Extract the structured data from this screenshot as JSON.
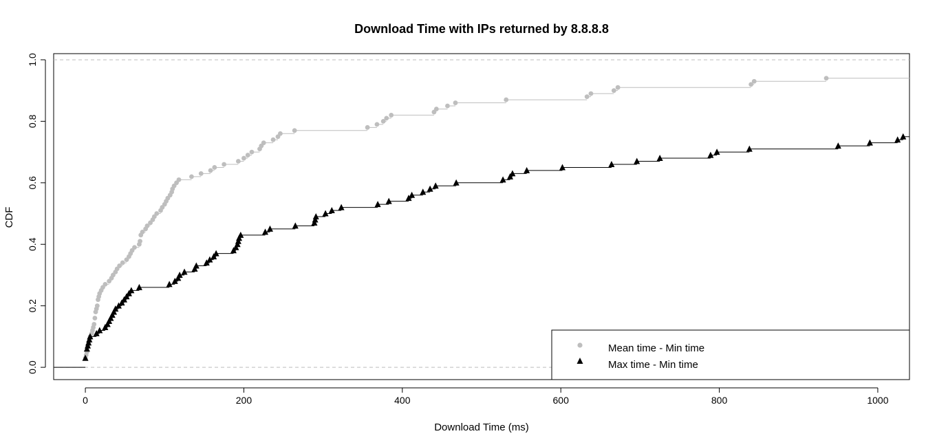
{
  "chart_data": {
    "type": "line",
    "subtype": "empirical CDF (step)",
    "title": "Download Time with IPs returned by 8.8.8.8",
    "xlabel": "Download Time (ms)",
    "ylabel": "CDF",
    "xlim": [
      -40,
      1040
    ],
    "ylim": [
      -0.04,
      1.02
    ],
    "x_ticks": [
      0,
      200,
      400,
      600,
      800,
      1000
    ],
    "x_tick_labels": [
      "0",
      "200",
      "400",
      "600",
      "800",
      "1000"
    ],
    "y_ticks": [
      0.0,
      0.2,
      0.4,
      0.6,
      0.8,
      1.0
    ],
    "y_tick_labels": [
      "0.0",
      "0.2",
      "0.4",
      "0.6",
      "0.8",
      "1.0"
    ],
    "reference_lines": [
      0.0,
      1.0
    ],
    "grid": false,
    "legend_position": "bottom-right",
    "series": [
      {
        "name": "Mean time - Min time",
        "color": "#bebebe",
        "marker": "circle",
        "points": [
          [
            0,
            0.03
          ],
          [
            1,
            0.04
          ],
          [
            2,
            0.05
          ],
          [
            3,
            0.07
          ],
          [
            4,
            0.08
          ],
          [
            5,
            0.09
          ],
          [
            6,
            0.1
          ],
          [
            8,
            0.11
          ],
          [
            9,
            0.12
          ],
          [
            10,
            0.13
          ],
          [
            11,
            0.14
          ],
          [
            12,
            0.16
          ],
          [
            13,
            0.18
          ],
          [
            14,
            0.19
          ],
          [
            15,
            0.2
          ],
          [
            16,
            0.22
          ],
          [
            17,
            0.23
          ],
          [
            18,
            0.24
          ],
          [
            20,
            0.25
          ],
          [
            22,
            0.26
          ],
          [
            25,
            0.27
          ],
          [
            30,
            0.28
          ],
          [
            33,
            0.29
          ],
          [
            35,
            0.3
          ],
          [
            38,
            0.31
          ],
          [
            40,
            0.32
          ],
          [
            43,
            0.33
          ],
          [
            47,
            0.34
          ],
          [
            52,
            0.35
          ],
          [
            55,
            0.36
          ],
          [
            57,
            0.37
          ],
          [
            59,
            0.38
          ],
          [
            62,
            0.39
          ],
          [
            68,
            0.4
          ],
          [
            69,
            0.41
          ],
          [
            70,
            0.43
          ],
          [
            72,
            0.44
          ],
          [
            76,
            0.45
          ],
          [
            78,
            0.46
          ],
          [
            82,
            0.47
          ],
          [
            85,
            0.48
          ],
          [
            87,
            0.49
          ],
          [
            90,
            0.5
          ],
          [
            95,
            0.51
          ],
          [
            97,
            0.52
          ],
          [
            100,
            0.53
          ],
          [
            102,
            0.54
          ],
          [
            104,
            0.55
          ],
          [
            107,
            0.56
          ],
          [
            109,
            0.57
          ],
          [
            110,
            0.58
          ],
          [
            112,
            0.59
          ],
          [
            115,
            0.6
          ],
          [
            118,
            0.61
          ],
          [
            134,
            0.62
          ],
          [
            146,
            0.63
          ],
          [
            158,
            0.64
          ],
          [
            163,
            0.65
          ],
          [
            175,
            0.66
          ],
          [
            193,
            0.67
          ],
          [
            200,
            0.68
          ],
          [
            205,
            0.69
          ],
          [
            210,
            0.7
          ],
          [
            220,
            0.71
          ],
          [
            222,
            0.72
          ],
          [
            225,
            0.73
          ],
          [
            237,
            0.74
          ],
          [
            243,
            0.75
          ],
          [
            246,
            0.76
          ],
          [
            264,
            0.77
          ],
          [
            356,
            0.78
          ],
          [
            368,
            0.79
          ],
          [
            376,
            0.8
          ],
          [
            380,
            0.81
          ],
          [
            386,
            0.82
          ],
          [
            440,
            0.83
          ],
          [
            443,
            0.84
          ],
          [
            457,
            0.85
          ],
          [
            467,
            0.86
          ],
          [
            531,
            0.87
          ],
          [
            633,
            0.88
          ],
          [
            638,
            0.89
          ],
          [
            667,
            0.9
          ],
          [
            672,
            0.91
          ],
          [
            840,
            0.92
          ],
          [
            844,
            0.93
          ],
          [
            935,
            0.94
          ]
        ]
      },
      {
        "name": "Max time - Min time",
        "color": "#000000",
        "marker": "triangle",
        "points": [
          [
            0,
            0.03
          ],
          [
            2,
            0.06
          ],
          [
            3,
            0.07
          ],
          [
            4,
            0.08
          ],
          [
            5,
            0.09
          ],
          [
            6,
            0.1
          ],
          [
            14,
            0.11
          ],
          [
            18,
            0.12
          ],
          [
            25,
            0.13
          ],
          [
            28,
            0.14
          ],
          [
            30,
            0.15
          ],
          [
            32,
            0.16
          ],
          [
            34,
            0.17
          ],
          [
            36,
            0.18
          ],
          [
            38,
            0.19
          ],
          [
            42,
            0.2
          ],
          [
            46,
            0.21
          ],
          [
            49,
            0.22
          ],
          [
            52,
            0.23
          ],
          [
            55,
            0.24
          ],
          [
            58,
            0.25
          ],
          [
            68,
            0.26
          ],
          [
            106,
            0.27
          ],
          [
            113,
            0.28
          ],
          [
            117,
            0.29
          ],
          [
            119,
            0.3
          ],
          [
            125,
            0.31
          ],
          [
            138,
            0.32
          ],
          [
            140,
            0.33
          ],
          [
            153,
            0.34
          ],
          [
            157,
            0.35
          ],
          [
            162,
            0.36
          ],
          [
            165,
            0.37
          ],
          [
            187,
            0.38
          ],
          [
            190,
            0.39
          ],
          [
            192,
            0.4
          ],
          [
            193,
            0.41
          ],
          [
            194,
            0.42
          ],
          [
            196,
            0.43
          ],
          [
            227,
            0.44
          ],
          [
            233,
            0.45
          ],
          [
            265,
            0.46
          ],
          [
            289,
            0.47
          ],
          [
            290,
            0.48
          ],
          [
            291,
            0.49
          ],
          [
            303,
            0.5
          ],
          [
            311,
            0.51
          ],
          [
            323,
            0.52
          ],
          [
            369,
            0.53
          ],
          [
            383,
            0.54
          ],
          [
            408,
            0.55
          ],
          [
            412,
            0.56
          ],
          [
            426,
            0.57
          ],
          [
            435,
            0.58
          ],
          [
            442,
            0.59
          ],
          [
            468,
            0.6
          ],
          [
            527,
            0.61
          ],
          [
            536,
            0.62
          ],
          [
            539,
            0.63
          ],
          [
            557,
            0.64
          ],
          [
            602,
            0.65
          ],
          [
            664,
            0.66
          ],
          [
            696,
            0.67
          ],
          [
            725,
            0.68
          ],
          [
            789,
            0.69
          ],
          [
            797,
            0.7
          ],
          [
            838,
            0.71
          ],
          [
            950,
            0.72
          ],
          [
            990,
            0.73
          ],
          [
            1025,
            0.74
          ],
          [
            1032,
            0.75
          ]
        ]
      }
    ]
  }
}
